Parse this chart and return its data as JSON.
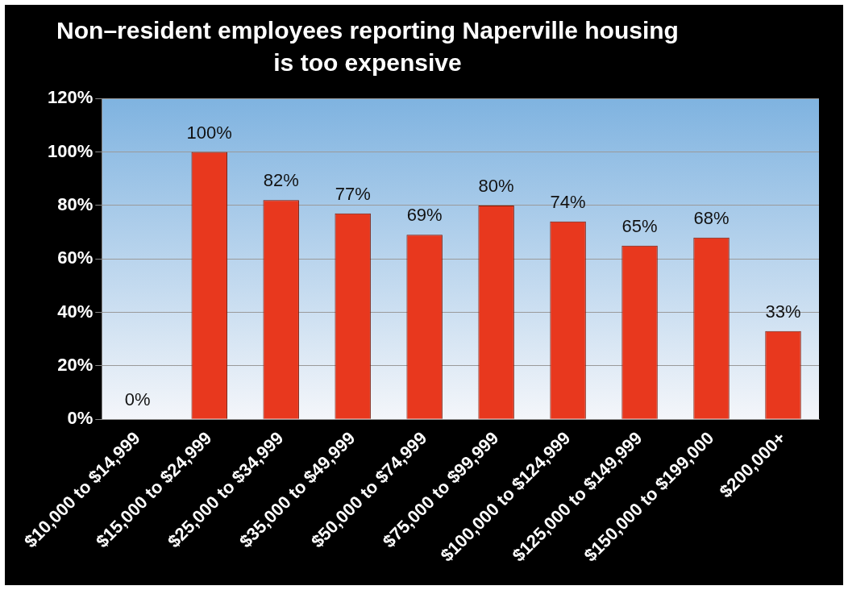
{
  "chart_data": {
    "type": "bar",
    "title": "Non–resident employees reporting Naperville housing is too expensive",
    "categories": [
      "$10,000 to $14,999",
      "$15,000 to $24,999",
      "$25,000 to $34,999",
      "$35,000 to $49,999",
      "$50,000 to $74,999",
      "$75,000 to $99,999",
      "$100,000 to $124,999",
      "$125,000 to $149,999",
      "$150,000 to $199,000",
      "$200,000+"
    ],
    "values": [
      0,
      100,
      82,
      77,
      69,
      80,
      74,
      65,
      68,
      33
    ],
    "value_labels": [
      "0%",
      "100%",
      "82%",
      "77%",
      "69%",
      "80%",
      "74%",
      "65%",
      "68%",
      "33%"
    ],
    "color": "#e8381e",
    "ylim": [
      0,
      120
    ],
    "yticks": [
      {
        "value": 0,
        "label": "0%"
      },
      {
        "value": 20,
        "label": "20%"
      },
      {
        "value": 40,
        "label": "40%"
      },
      {
        "value": 60,
        "label": "60%"
      },
      {
        "value": 80,
        "label": "80%"
      },
      {
        "value": 100,
        "label": "100%"
      },
      {
        "value": 120,
        "label": "120%"
      }
    ],
    "grid": "y",
    "legend": false
  }
}
